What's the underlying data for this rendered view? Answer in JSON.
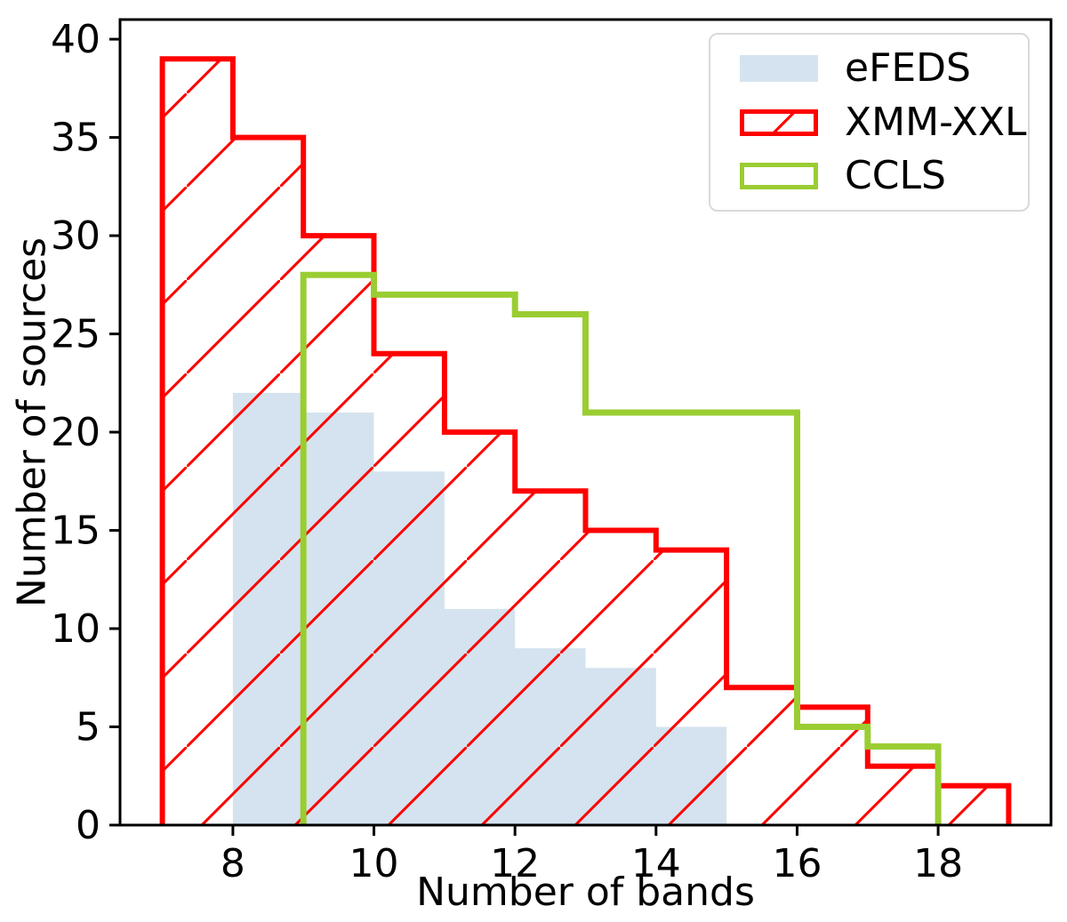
{
  "chart_data": {
    "type": "histogram-step",
    "title": "",
    "xlabel": "Number of bands",
    "ylabel": "Number of sources",
    "xlim": [
      6.4,
      19.6
    ],
    "ylim": [
      0,
      41
    ],
    "xticks": [
      8,
      10,
      12,
      14,
      16,
      18
    ],
    "yticks": [
      0,
      5,
      10,
      15,
      20,
      25,
      30,
      35,
      40
    ],
    "grid": false,
    "legend_position": "upper right",
    "axis_color": "#000000",
    "series": [
      {
        "name": "eFEDS",
        "style": "filled",
        "color": "#d4e3ef",
        "bin_start": 8,
        "bin_width": 1,
        "values": [
          22,
          21,
          18,
          11,
          9,
          8,
          5
        ]
      },
      {
        "name": "XMM-XXL",
        "style": "hatched-step",
        "color": "#ff0000",
        "hatch": "/",
        "bin_start": 7,
        "bin_width": 1,
        "values": [
          39,
          35,
          30,
          24,
          20,
          17,
          15,
          14,
          7,
          6,
          3,
          2
        ]
      },
      {
        "name": "CCLS",
        "style": "step",
        "color": "#9acd32",
        "bin_start": 9,
        "bin_width": 1,
        "values": [
          28,
          27,
          27,
          26,
          21,
          21,
          21,
          5,
          4
        ]
      }
    ]
  }
}
